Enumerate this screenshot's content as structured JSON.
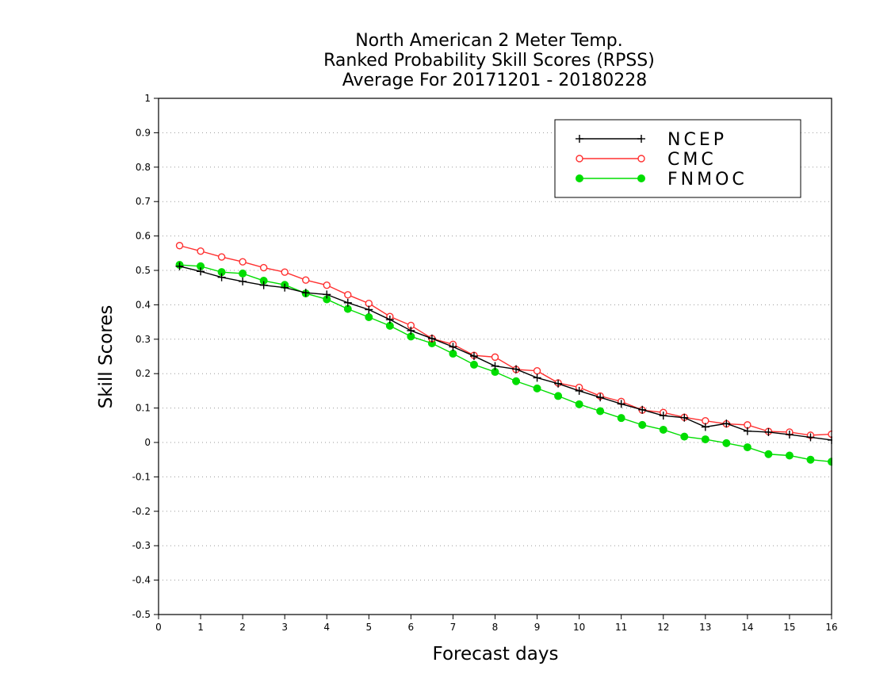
{
  "chart_data": {
    "type": "line",
    "title_lines": [
      "North American 2 Meter Temp.",
      "Ranked Probability Skill Scores (RPSS)",
      "Average For 20171201 - 20180228"
    ],
    "xlabel": "Forecast days",
    "ylabel": "Skill Scores",
    "xlim": [
      0,
      16
    ],
    "ylim": [
      -0.5,
      1
    ],
    "xticks": [
      "0",
      "1",
      "2",
      "3",
      "4",
      "5",
      "6",
      "7",
      "8",
      "9",
      "10",
      "11",
      "12",
      "13",
      "14",
      "15",
      "16"
    ],
    "yticks": [
      "-0.5",
      "-0.4",
      "-0.3",
      "-0.2",
      "-0.1",
      "0",
      "0.1",
      "0.2",
      "0.3",
      "0.4",
      "0.5",
      "0.6",
      "0.7",
      "0.8",
      "0.9",
      "1"
    ],
    "grid": "horizontal dotted",
    "legend_position": "top-right",
    "x": [
      0.5,
      1,
      1.5,
      2,
      2.5,
      3,
      3.5,
      4,
      4.5,
      5,
      5.5,
      6,
      6.5,
      7,
      7.5,
      8,
      8.5,
      9,
      9.5,
      10,
      10.5,
      11,
      11.5,
      12,
      12.5,
      13,
      13.5,
      14,
      14.5,
      15,
      15.5,
      16
    ],
    "series": [
      {
        "name": "NCEP",
        "color": "#000000",
        "marker": "plus",
        "values": [
          0.512,
          0.497,
          0.48,
          0.468,
          0.457,
          0.45,
          0.435,
          0.43,
          0.406,
          0.386,
          0.357,
          0.325,
          0.302,
          0.278,
          0.251,
          0.222,
          0.213,
          0.188,
          0.171,
          0.15,
          0.131,
          0.112,
          0.095,
          0.078,
          0.072,
          0.045,
          0.055,
          0.033,
          0.03,
          0.023,
          0.015,
          0.007
        ]
      },
      {
        "name": "CMC",
        "color": "#ff3030",
        "marker": "open-circle",
        "values": [
          0.572,
          0.556,
          0.539,
          0.525,
          0.508,
          0.495,
          0.472,
          0.457,
          0.429,
          0.404,
          0.366,
          0.34,
          0.302,
          0.285,
          0.253,
          0.248,
          0.212,
          0.208,
          0.173,
          0.16,
          0.135,
          0.119,
          0.094,
          0.087,
          0.073,
          0.063,
          0.054,
          0.051,
          0.032,
          0.03,
          0.021,
          0.024
        ]
      },
      {
        "name": "FNMOC",
        "color": "#00dd00",
        "marker": "filled-circle",
        "values": [
          0.516,
          0.512,
          0.495,
          0.491,
          0.47,
          0.458,
          0.433,
          0.416,
          0.388,
          0.364,
          0.339,
          0.308,
          0.288,
          0.258,
          0.226,
          0.205,
          0.178,
          0.157,
          0.135,
          0.111,
          0.091,
          0.071,
          0.051,
          0.037,
          0.017,
          0.009,
          -0.002,
          -0.014,
          -0.034,
          -0.038,
          -0.05,
          -0.056
        ]
      }
    ]
  }
}
